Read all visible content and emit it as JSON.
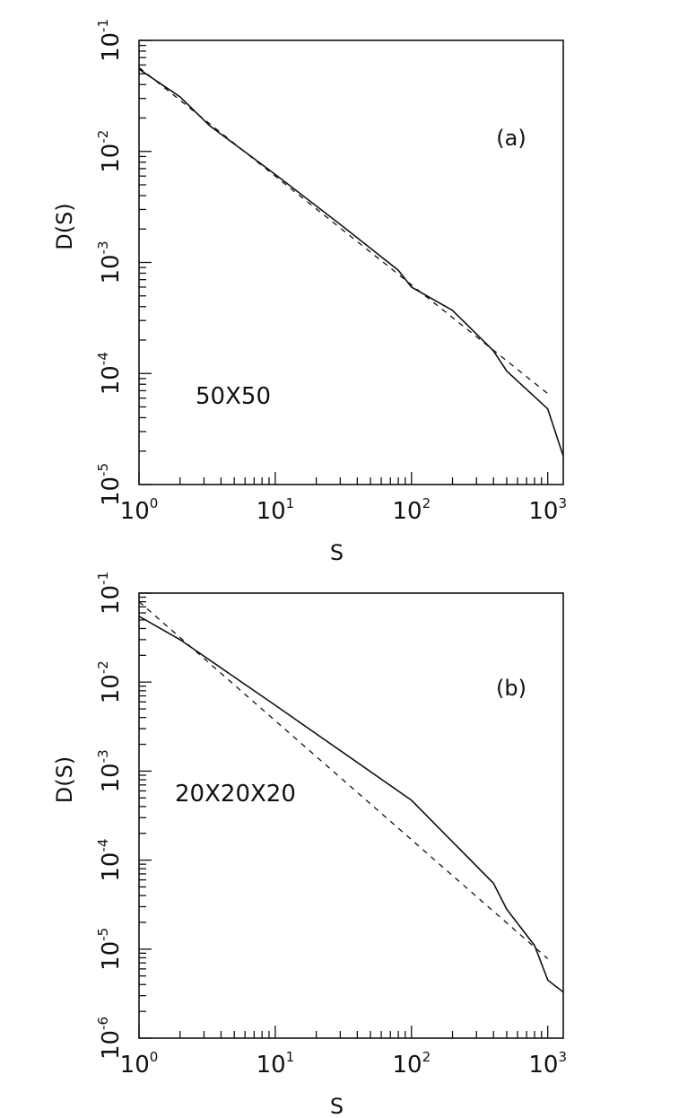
{
  "chart_data": [
    {
      "type": "line",
      "panel_label": "(a)",
      "annotation": "50X50",
      "xlabel": "S",
      "ylabel": "D(S)",
      "x_scale": "log",
      "y_scale": "log",
      "xlim": [
        1,
        1300
      ],
      "ylim": [
        1e-05,
        0.1
      ],
      "x_ticks": [
        {
          "value": 1,
          "base": "10",
          "exp": "0"
        },
        {
          "value": 10,
          "base": "10",
          "exp": "1"
        },
        {
          "value": 100,
          "base": "10",
          "exp": "2"
        },
        {
          "value": 1000,
          "base": "10",
          "exp": "3"
        }
      ],
      "y_ticks": [
        {
          "value": 1e-05,
          "base": "10",
          "exp": "-5"
        },
        {
          "value": 0.0001,
          "base": "10",
          "exp": "-4"
        },
        {
          "value": 0.001,
          "base": "10",
          "exp": "-3"
        },
        {
          "value": 0.01,
          "base": "10",
          "exp": "-2"
        },
        {
          "value": 0.1,
          "base": "10",
          "exp": "-1"
        }
      ],
      "series": [
        {
          "style": "solid",
          "x": [
            1,
            2,
            3.3,
            10,
            30,
            80,
            100,
            200,
            400,
            500,
            1000,
            1300
          ],
          "y": [
            0.055,
            0.031,
            0.017,
            0.0062,
            0.0022,
            0.00085,
            0.0006,
            0.00037,
            0.00016,
            0.000105,
            4.8e-05,
            1.8e-05
          ]
        },
        {
          "style": "dashed",
          "x": [
            1,
            1000
          ],
          "y": [
            0.057,
            6.6e-05
          ]
        }
      ]
    },
    {
      "type": "line",
      "panel_label": "(b)",
      "annotation": "20X20X20",
      "xlabel": "S",
      "ylabel": "D(S)",
      "x_scale": "log",
      "y_scale": "log",
      "xlim": [
        1,
        1300
      ],
      "ylim": [
        1e-06,
        0.1
      ],
      "x_ticks": [
        {
          "value": 1,
          "base": "10",
          "exp": "0"
        },
        {
          "value": 10,
          "base": "10",
          "exp": "1"
        },
        {
          "value": 100,
          "base": "10",
          "exp": "2"
        },
        {
          "value": 1000,
          "base": "10",
          "exp": "3"
        }
      ],
      "y_ticks": [
        {
          "value": 1e-06,
          "base": "10",
          "exp": "-6"
        },
        {
          "value": 1e-05,
          "base": "10",
          "exp": "-5"
        },
        {
          "value": 0.0001,
          "base": "10",
          "exp": "-4"
        },
        {
          "value": 0.001,
          "base": "10",
          "exp": "-3"
        },
        {
          "value": 0.01,
          "base": "10",
          "exp": "-2"
        },
        {
          "value": 0.1,
          "base": "10",
          "exp": "-1"
        }
      ],
      "series": [
        {
          "style": "solid",
          "x": [
            1,
            2,
            10,
            100,
            400,
            500,
            800,
            1000,
            1100,
            1300
          ],
          "y": [
            0.055,
            0.03,
            0.0055,
            0.00047,
            5.5e-05,
            2.8e-05,
            1.1e-05,
            4.5e-06,
            4e-06,
            3.3e-06
          ]
        },
        {
          "style": "dashed",
          "x": [
            1,
            1000
          ],
          "y": [
            0.08,
            7.8e-06
          ]
        }
      ]
    }
  ]
}
